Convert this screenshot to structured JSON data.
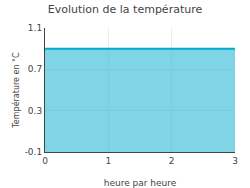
{
  "chart_data": {
    "type": "area",
    "title": "Evolution de la température",
    "xlabel": "heure par heure",
    "ylabel": "Température en °C",
    "x": [
      0,
      3
    ],
    "values": [
      0.9,
      0.9
    ],
    "color": "#00aacc",
    "xlim": [
      0,
      3
    ],
    "ylim": [
      -0.1,
      1.1
    ],
    "xticks": [
      0,
      1,
      2,
      3
    ],
    "yticks": [
      -0.1,
      0.3,
      0.7,
      1.1
    ],
    "grid": true
  }
}
